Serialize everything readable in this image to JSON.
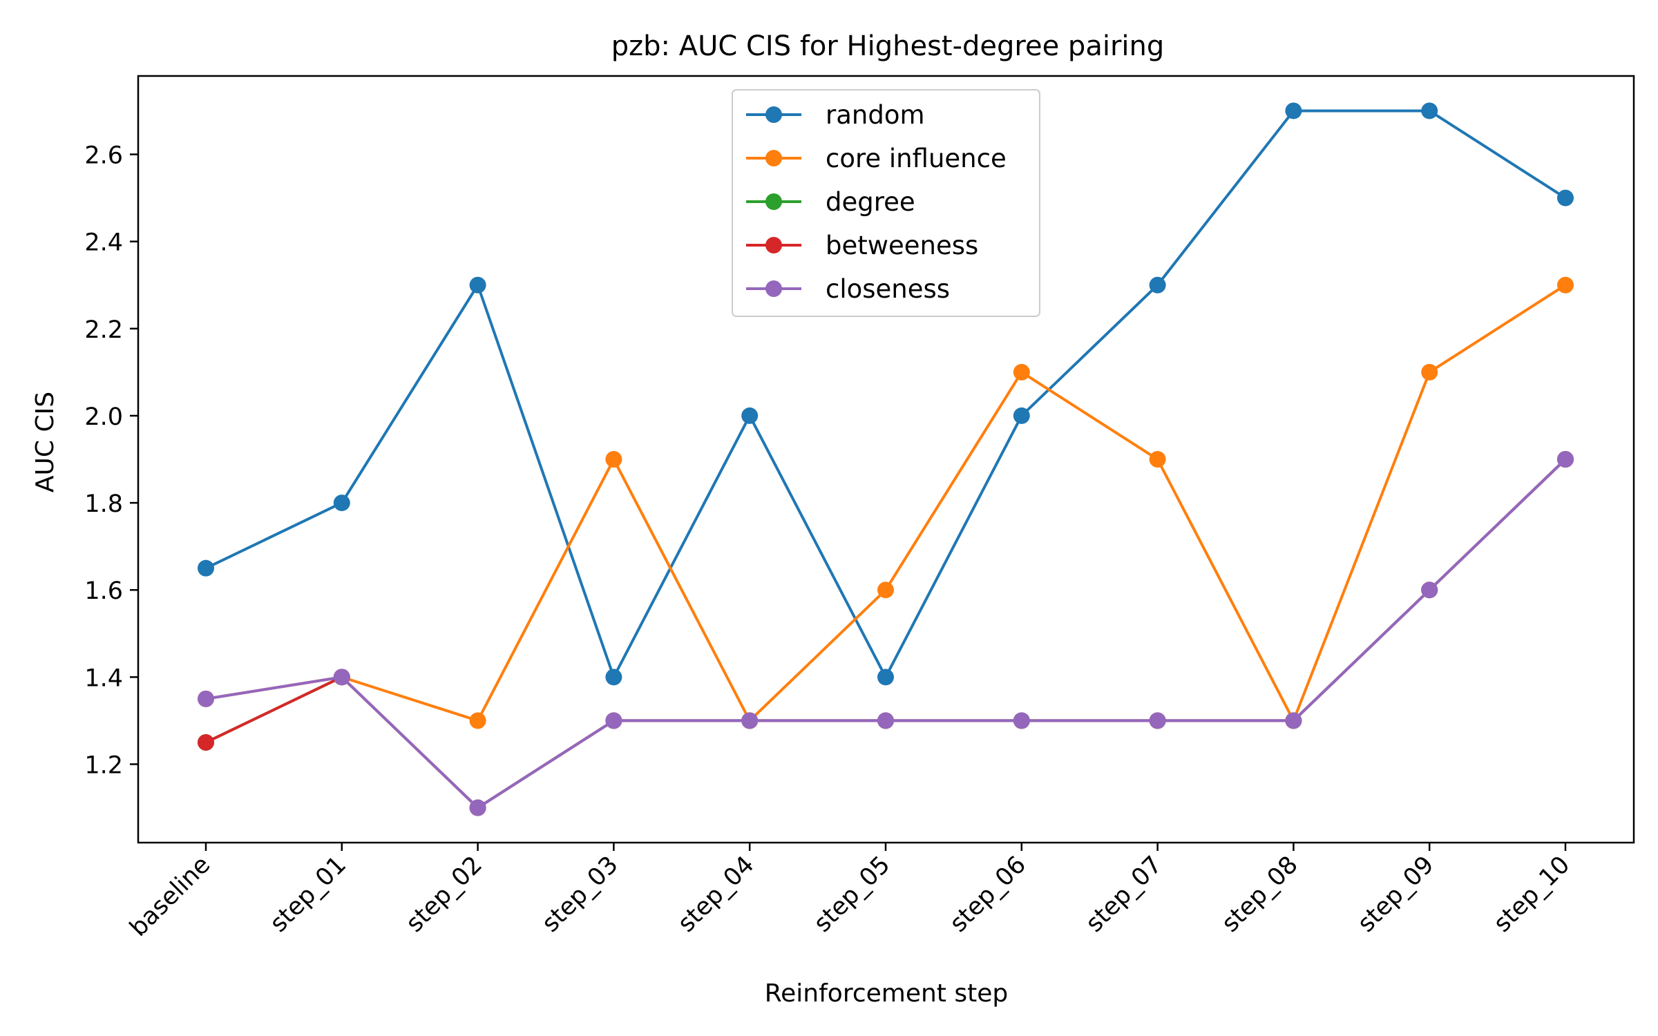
{
  "chart_data": {
    "type": "line",
    "title": "pzb: AUC CIS for Highest-degree pairing",
    "xlabel": "Reinforcement step",
    "ylabel": "AUC CIS",
    "categories": [
      "baseline",
      "step_01",
      "step_02",
      "step_03",
      "step_04",
      "step_05",
      "step_06",
      "step_07",
      "step_08",
      "step_09",
      "step_10"
    ],
    "ylim": [
      1.02,
      2.78
    ],
    "yticks": [
      1.2,
      1.4,
      1.6,
      1.8,
      2.0,
      2.2,
      2.4,
      2.6
    ],
    "ytick_labels": [
      "1.2",
      "1.4",
      "1.6",
      "1.8",
      "2.0",
      "2.2",
      "2.4",
      "2.6"
    ],
    "grid": false,
    "legend_position": "top-center",
    "series": [
      {
        "name": "random",
        "color": "#1f77b4",
        "values": [
          1.65,
          1.8,
          2.3,
          1.4,
          2.0,
          1.4,
          2.0,
          2.3,
          2.7,
          2.7,
          2.5
        ]
      },
      {
        "name": "core influence",
        "color": "#ff7f0e",
        "values": [
          1.35,
          1.4,
          1.3,
          1.9,
          1.3,
          1.6,
          2.1,
          1.9,
          1.3,
          2.1,
          2.3
        ]
      },
      {
        "name": "degree",
        "color": "#2ca02c",
        "values": [
          1.25,
          1.4,
          1.1,
          1.3,
          1.3,
          1.3,
          1.3,
          1.3,
          1.3,
          1.6,
          1.9
        ]
      },
      {
        "name": "betweeness",
        "color": "#d62728",
        "values": [
          1.25,
          1.4,
          1.1,
          1.3,
          1.3,
          1.3,
          1.3,
          1.3,
          1.3,
          1.6,
          1.9
        ]
      },
      {
        "name": "closeness",
        "color": "#9467bd",
        "values": [
          1.35,
          1.4,
          1.1,
          1.3,
          1.3,
          1.3,
          1.3,
          1.3,
          1.3,
          1.6,
          1.9
        ]
      }
    ]
  }
}
